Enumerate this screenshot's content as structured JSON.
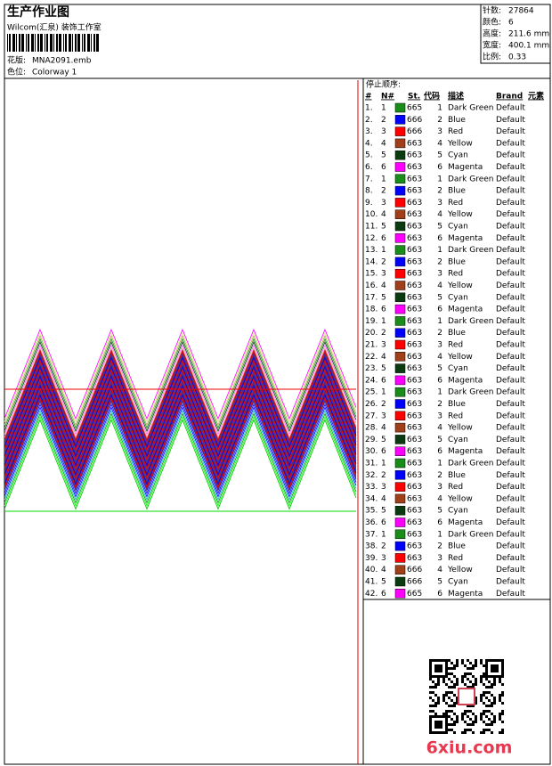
{
  "header": {
    "title": "生产作业图",
    "studio": "Wilcom(汇泉) 装饰工作室",
    "design_label": "花版:",
    "design": "MNA2091.emb",
    "colorway_label": "色位:",
    "colorway": "Colorway 1"
  },
  "info": [
    {
      "label": "针数:",
      "value": "27864"
    },
    {
      "label": "颜色:",
      "value": "6"
    },
    {
      "label": "高度:",
      "value": "211.6 mm"
    },
    {
      "label": "宽度:",
      "value": "400.1 mm"
    },
    {
      "label": "比例:",
      "value": "0.33"
    }
  ],
  "table": {
    "caption": "停止顺序:",
    "columns": [
      "#",
      "N#",
      "St.",
      "代码",
      "描述",
      "Brand",
      "元素"
    ],
    "rows": [
      [
        "1.",
        "1",
        "#1a8c1a",
        "665",
        "1",
        "Dark Green",
        "Default"
      ],
      [
        "2.",
        "2",
        "#0000ff",
        "666",
        "2",
        "Blue",
        "Default"
      ],
      [
        "3.",
        "3",
        "#ff0000",
        "666",
        "3",
        "Red",
        "Default"
      ],
      [
        "4.",
        "4",
        "#a0401a",
        "663",
        "4",
        "Yellow",
        "Default"
      ],
      [
        "5.",
        "5",
        "#0a3a10",
        "663",
        "5",
        "Cyan",
        "Default"
      ],
      [
        "6.",
        "6",
        "#ff00ff",
        "663",
        "6",
        "Magenta",
        "Default"
      ],
      [
        "7.",
        "1",
        "#1a8c1a",
        "663",
        "1",
        "Dark Green",
        "Default"
      ],
      [
        "8.",
        "2",
        "#0000ff",
        "663",
        "2",
        "Blue",
        "Default"
      ],
      [
        "9.",
        "3",
        "#ff0000",
        "663",
        "3",
        "Red",
        "Default"
      ],
      [
        "10.",
        "4",
        "#a0401a",
        "663",
        "4",
        "Yellow",
        "Default"
      ],
      [
        "11.",
        "5",
        "#0a3a10",
        "663",
        "5",
        "Cyan",
        "Default"
      ],
      [
        "12.",
        "6",
        "#ff00ff",
        "663",
        "6",
        "Magenta",
        "Default"
      ],
      [
        "13.",
        "1",
        "#1a8c1a",
        "663",
        "1",
        "Dark Green",
        "Default"
      ],
      [
        "14.",
        "2",
        "#0000ff",
        "663",
        "2",
        "Blue",
        "Default"
      ],
      [
        "15.",
        "3",
        "#ff0000",
        "663",
        "3",
        "Red",
        "Default"
      ],
      [
        "16.",
        "4",
        "#a0401a",
        "663",
        "4",
        "Yellow",
        "Default"
      ],
      [
        "17.",
        "5",
        "#0a3a10",
        "663",
        "5",
        "Cyan",
        "Default"
      ],
      [
        "18.",
        "6",
        "#ff00ff",
        "663",
        "6",
        "Magenta",
        "Default"
      ],
      [
        "19.",
        "1",
        "#1a8c1a",
        "663",
        "1",
        "Dark Green",
        "Default"
      ],
      [
        "20.",
        "2",
        "#0000ff",
        "663",
        "2",
        "Blue",
        "Default"
      ],
      [
        "21.",
        "3",
        "#ff0000",
        "663",
        "3",
        "Red",
        "Default"
      ],
      [
        "22.",
        "4",
        "#a0401a",
        "663",
        "4",
        "Yellow",
        "Default"
      ],
      [
        "23.",
        "5",
        "#0a3a10",
        "663",
        "5",
        "Cyan",
        "Default"
      ],
      [
        "24.",
        "6",
        "#ff00ff",
        "663",
        "6",
        "Magenta",
        "Default"
      ],
      [
        "25.",
        "1",
        "#1a8c1a",
        "663",
        "1",
        "Dark Green",
        "Default"
      ],
      [
        "26.",
        "2",
        "#0000ff",
        "663",
        "2",
        "Blue",
        "Default"
      ],
      [
        "27.",
        "3",
        "#ff0000",
        "663",
        "3",
        "Red",
        "Default"
      ],
      [
        "28.",
        "4",
        "#a0401a",
        "663",
        "4",
        "Yellow",
        "Default"
      ],
      [
        "29.",
        "5",
        "#0a3a10",
        "663",
        "5",
        "Cyan",
        "Default"
      ],
      [
        "30.",
        "6",
        "#ff00ff",
        "663",
        "6",
        "Magenta",
        "Default"
      ],
      [
        "31.",
        "1",
        "#1a8c1a",
        "663",
        "1",
        "Dark Green",
        "Default"
      ],
      [
        "32.",
        "2",
        "#0000ff",
        "663",
        "2",
        "Blue",
        "Default"
      ],
      [
        "33.",
        "3",
        "#ff0000",
        "663",
        "3",
        "Red",
        "Default"
      ],
      [
        "34.",
        "4",
        "#a0401a",
        "663",
        "4",
        "Yellow",
        "Default"
      ],
      [
        "35.",
        "5",
        "#0a3a10",
        "663",
        "5",
        "Cyan",
        "Default"
      ],
      [
        "36.",
        "6",
        "#ff00ff",
        "663",
        "6",
        "Magenta",
        "Default"
      ],
      [
        "37.",
        "1",
        "#1a8c1a",
        "663",
        "1",
        "Dark Green",
        "Default"
      ],
      [
        "38.",
        "2",
        "#0000ff",
        "663",
        "2",
        "Blue",
        "Default"
      ],
      [
        "39.",
        "3",
        "#ff0000",
        "663",
        "3",
        "Red",
        "Default"
      ],
      [
        "40.",
        "4",
        "#a0401a",
        "666",
        "4",
        "Yellow",
        "Default"
      ],
      [
        "41.",
        "5",
        "#0a3a10",
        "666",
        "5",
        "Cyan",
        "Default"
      ],
      [
        "42.",
        "6",
        "#ff00ff",
        "665",
        "6",
        "Magenta",
        "Default"
      ]
    ]
  },
  "watermark": "6xiu.com"
}
